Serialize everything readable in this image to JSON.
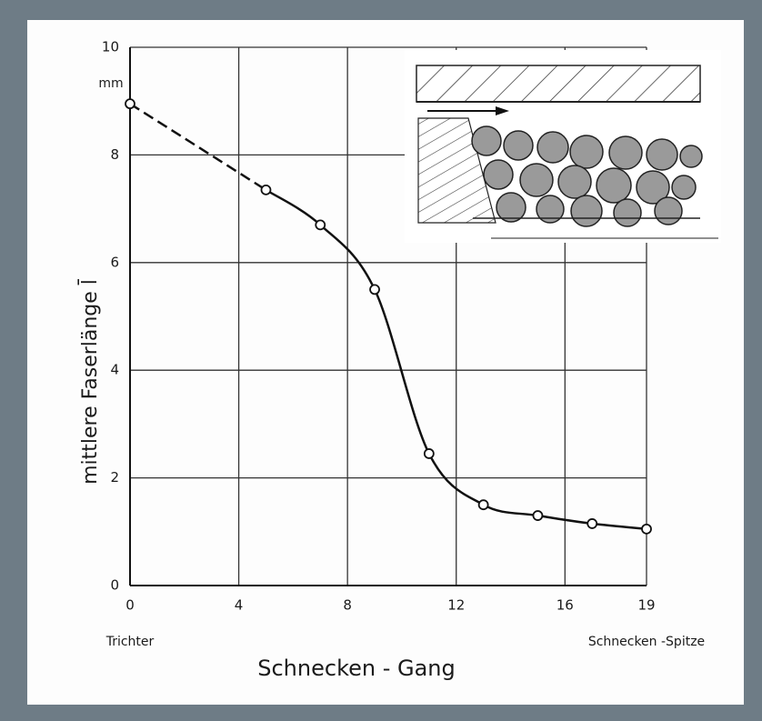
{
  "chart_data": {
    "type": "line",
    "x": [
      0,
      5,
      7,
      9,
      11,
      13,
      15,
      17,
      19
    ],
    "values": [
      8.95,
      7.35,
      6.7,
      5.5,
      2.45,
      1.5,
      1.3,
      1.15,
      1.05
    ],
    "dashed_until": 5,
    "color": "#111111",
    "xlim": [
      0,
      19
    ],
    "xticks": [
      0,
      4,
      8,
      12,
      16,
      19
    ],
    "ylim": [
      0,
      10
    ],
    "yticks": [
      0,
      2,
      4,
      6,
      8,
      10
    ],
    "grid": true,
    "y_unit": "mm",
    "ylabel": "mittlere Faserlänge l̄",
    "xlabel": "Schnecken - Gang",
    "x_start_label": "Trichter",
    "x_end_label": "Schnecken -Spitze"
  }
}
